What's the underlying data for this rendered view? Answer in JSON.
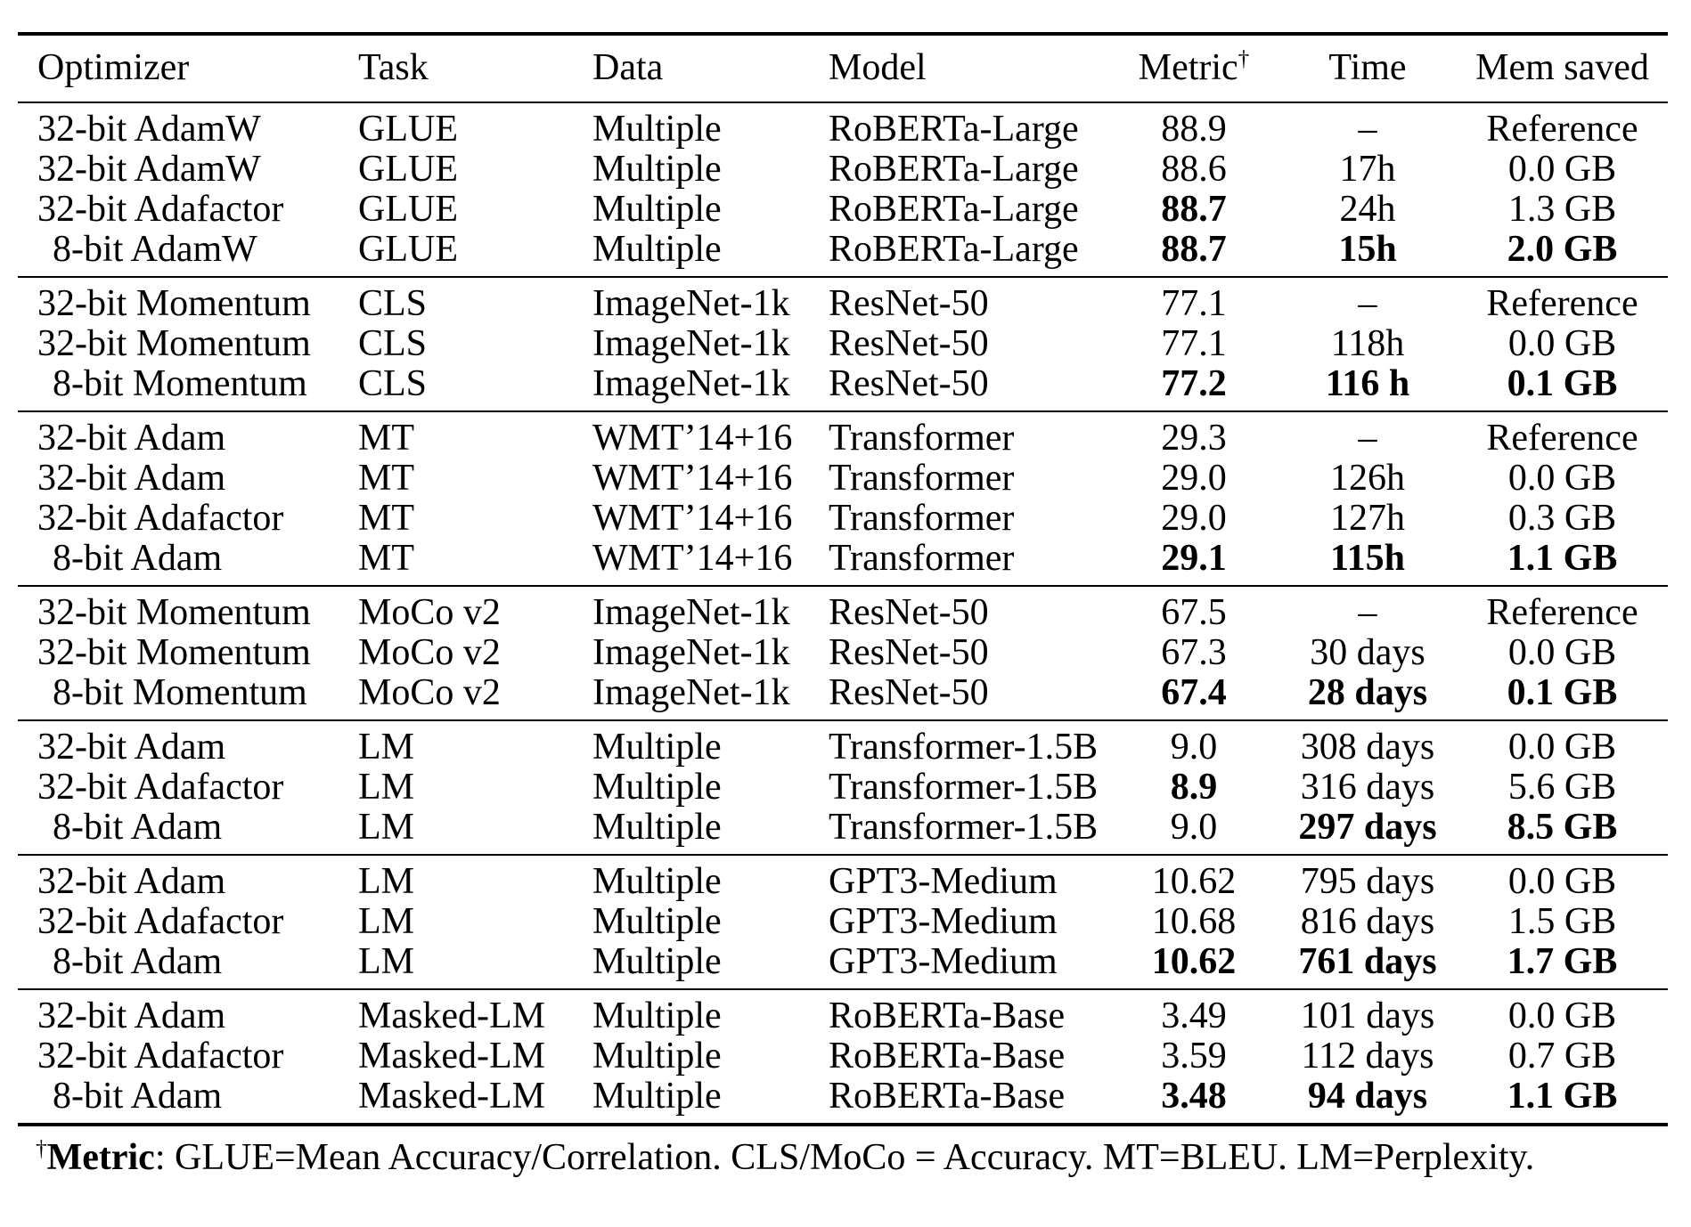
{
  "colors": {
    "text": "#000000",
    "background": "#ffffff",
    "rule": "#000000"
  },
  "table": {
    "columns": [
      {
        "label": "Optimizer",
        "align": "left"
      },
      {
        "label": "Task",
        "align": "left"
      },
      {
        "label": "Data",
        "align": "left"
      },
      {
        "label": "Model",
        "align": "left"
      },
      {
        "label": "Metric",
        "sup": "†",
        "align": "center"
      },
      {
        "label": "Time",
        "align": "center"
      },
      {
        "label": "Mem saved",
        "align": "center"
      }
    ],
    "groups": [
      {
        "rows": [
          {
            "optimizer": "32-bit AdamW",
            "task": "GLUE",
            "data": "Multiple",
            "model": "RoBERTa-Large",
            "metric": "88.9",
            "time": "–",
            "mem": "Reference",
            "bold": []
          },
          {
            "optimizer": "32-bit AdamW",
            "task": "GLUE",
            "data": "Multiple",
            "model": "RoBERTa-Large",
            "metric": "88.6",
            "time": "17h",
            "mem": "0.0 GB",
            "bold": []
          },
          {
            "optimizer": "32-bit Adafactor",
            "task": "GLUE",
            "data": "Multiple",
            "model": "RoBERTa-Large",
            "metric": "88.7",
            "time": "24h",
            "mem": "1.3 GB",
            "bold": [
              "metric"
            ]
          },
          {
            "optimizer": "8-bit AdamW",
            "task": "GLUE",
            "data": "Multiple",
            "model": "RoBERTa-Large",
            "metric": "88.7",
            "time": "15h",
            "mem": "2.0 GB",
            "bold": [
              "metric",
              "time",
              "mem"
            ]
          }
        ]
      },
      {
        "rows": [
          {
            "optimizer": "32-bit Momentum",
            "task": "CLS",
            "data": "ImageNet-1k",
            "model": "ResNet-50",
            "metric": "77.1",
            "time": "–",
            "mem": "Reference",
            "bold": []
          },
          {
            "optimizer": "32-bit Momentum",
            "task": "CLS",
            "data": "ImageNet-1k",
            "model": "ResNet-50",
            "metric": "77.1",
            "time": "118h",
            "mem": "0.0 GB",
            "bold": []
          },
          {
            "optimizer": "8-bit Momentum",
            "task": "CLS",
            "data": "ImageNet-1k",
            "model": "ResNet-50",
            "metric": "77.2",
            "time": "116 h",
            "mem": "0.1 GB",
            "bold": [
              "metric",
              "time",
              "mem"
            ]
          }
        ]
      },
      {
        "rows": [
          {
            "optimizer": "32-bit Adam",
            "task": "MT",
            "data": "WMT’14+16",
            "model": "Transformer",
            "metric": "29.3",
            "time": "–",
            "mem": "Reference",
            "bold": []
          },
          {
            "optimizer": "32-bit Adam",
            "task": "MT",
            "data": "WMT’14+16",
            "model": "Transformer",
            "metric": "29.0",
            "time": "126h",
            "mem": "0.0 GB",
            "bold": []
          },
          {
            "optimizer": "32-bit Adafactor",
            "task": "MT",
            "data": "WMT’14+16",
            "model": "Transformer",
            "metric": "29.0",
            "time": "127h",
            "mem": "0.3 GB",
            "bold": []
          },
          {
            "optimizer": "8-bit Adam",
            "task": "MT",
            "data": "WMT’14+16",
            "model": "Transformer",
            "metric": "29.1",
            "time": "115h",
            "mem": "1.1 GB",
            "bold": [
              "metric",
              "time",
              "mem"
            ]
          }
        ]
      },
      {
        "rows": [
          {
            "optimizer": "32-bit Momentum",
            "task": "MoCo v2",
            "data": "ImageNet-1k",
            "model": "ResNet-50",
            "metric": "67.5",
            "time": "–",
            "mem": "Reference",
            "bold": []
          },
          {
            "optimizer": "32-bit Momentum",
            "task": "MoCo v2",
            "data": "ImageNet-1k",
            "model": "ResNet-50",
            "metric": "67.3",
            "time": "30 days",
            "mem": "0.0 GB",
            "bold": []
          },
          {
            "optimizer": "8-bit Momentum",
            "task": "MoCo v2",
            "data": "ImageNet-1k",
            "model": "ResNet-50",
            "metric": "67.4",
            "time": "28 days",
            "mem": "0.1 GB",
            "bold": [
              "metric",
              "time",
              "mem"
            ]
          }
        ]
      },
      {
        "rows": [
          {
            "optimizer": "32-bit Adam",
            "task": "LM",
            "data": "Multiple",
            "model": "Transformer-1.5B",
            "metric": "9.0",
            "time": "308 days",
            "mem": "0.0 GB",
            "bold": []
          },
          {
            "optimizer": "32-bit Adafactor",
            "task": "LM",
            "data": "Multiple",
            "model": "Transformer-1.5B",
            "metric": "8.9",
            "time": "316 days",
            "mem": "5.6 GB",
            "bold": [
              "metric"
            ]
          },
          {
            "optimizer": "8-bit Adam",
            "task": "LM",
            "data": "Multiple",
            "model": "Transformer-1.5B",
            "metric": "9.0",
            "time": "297 days",
            "mem": "8.5 GB",
            "bold": [
              "time",
              "mem"
            ]
          }
        ]
      },
      {
        "rows": [
          {
            "optimizer": "32-bit Adam",
            "task": "LM",
            "data": "Multiple",
            "model": "GPT3-Medium",
            "metric": "10.62",
            "time": "795 days",
            "mem": "0.0 GB",
            "bold": []
          },
          {
            "optimizer": "32-bit Adafactor",
            "task": "LM",
            "data": "Multiple",
            "model": "GPT3-Medium",
            "metric": "10.68",
            "time": "816 days",
            "mem": "1.5 GB",
            "bold": []
          },
          {
            "optimizer": "8-bit Adam",
            "task": "LM",
            "data": "Multiple",
            "model": "GPT3-Medium",
            "metric": "10.62",
            "time": "761 days",
            "mem": "1.7 GB",
            "bold": [
              "metric",
              "time",
              "mem"
            ]
          }
        ]
      },
      {
        "rows": [
          {
            "optimizer": "32-bit Adam",
            "task": "Masked-LM",
            "data": "Multiple",
            "model": "RoBERTa-Base",
            "metric": "3.49",
            "time": "101 days",
            "mem": "0.0 GB",
            "bold": []
          },
          {
            "optimizer": "32-bit Adafactor",
            "task": "Masked-LM",
            "data": "Multiple",
            "model": "RoBERTa-Base",
            "metric": "3.59",
            "time": "112 days",
            "mem": "0.7 GB",
            "bold": []
          },
          {
            "optimizer": "8-bit Adam",
            "task": "Masked-LM",
            "data": "Multiple",
            "model": "RoBERTa-Base",
            "metric": "3.48",
            "time": "94 days",
            "mem": "1.1 GB",
            "bold": [
              "metric",
              "time",
              "mem"
            ]
          }
        ]
      }
    ]
  },
  "footnote": {
    "dagger": "†",
    "term": "Metric",
    "text": ": GLUE=Mean Accuracy/Correlation. CLS/MoCo = Accuracy. MT=BLEU. LM=Perplexity."
  }
}
